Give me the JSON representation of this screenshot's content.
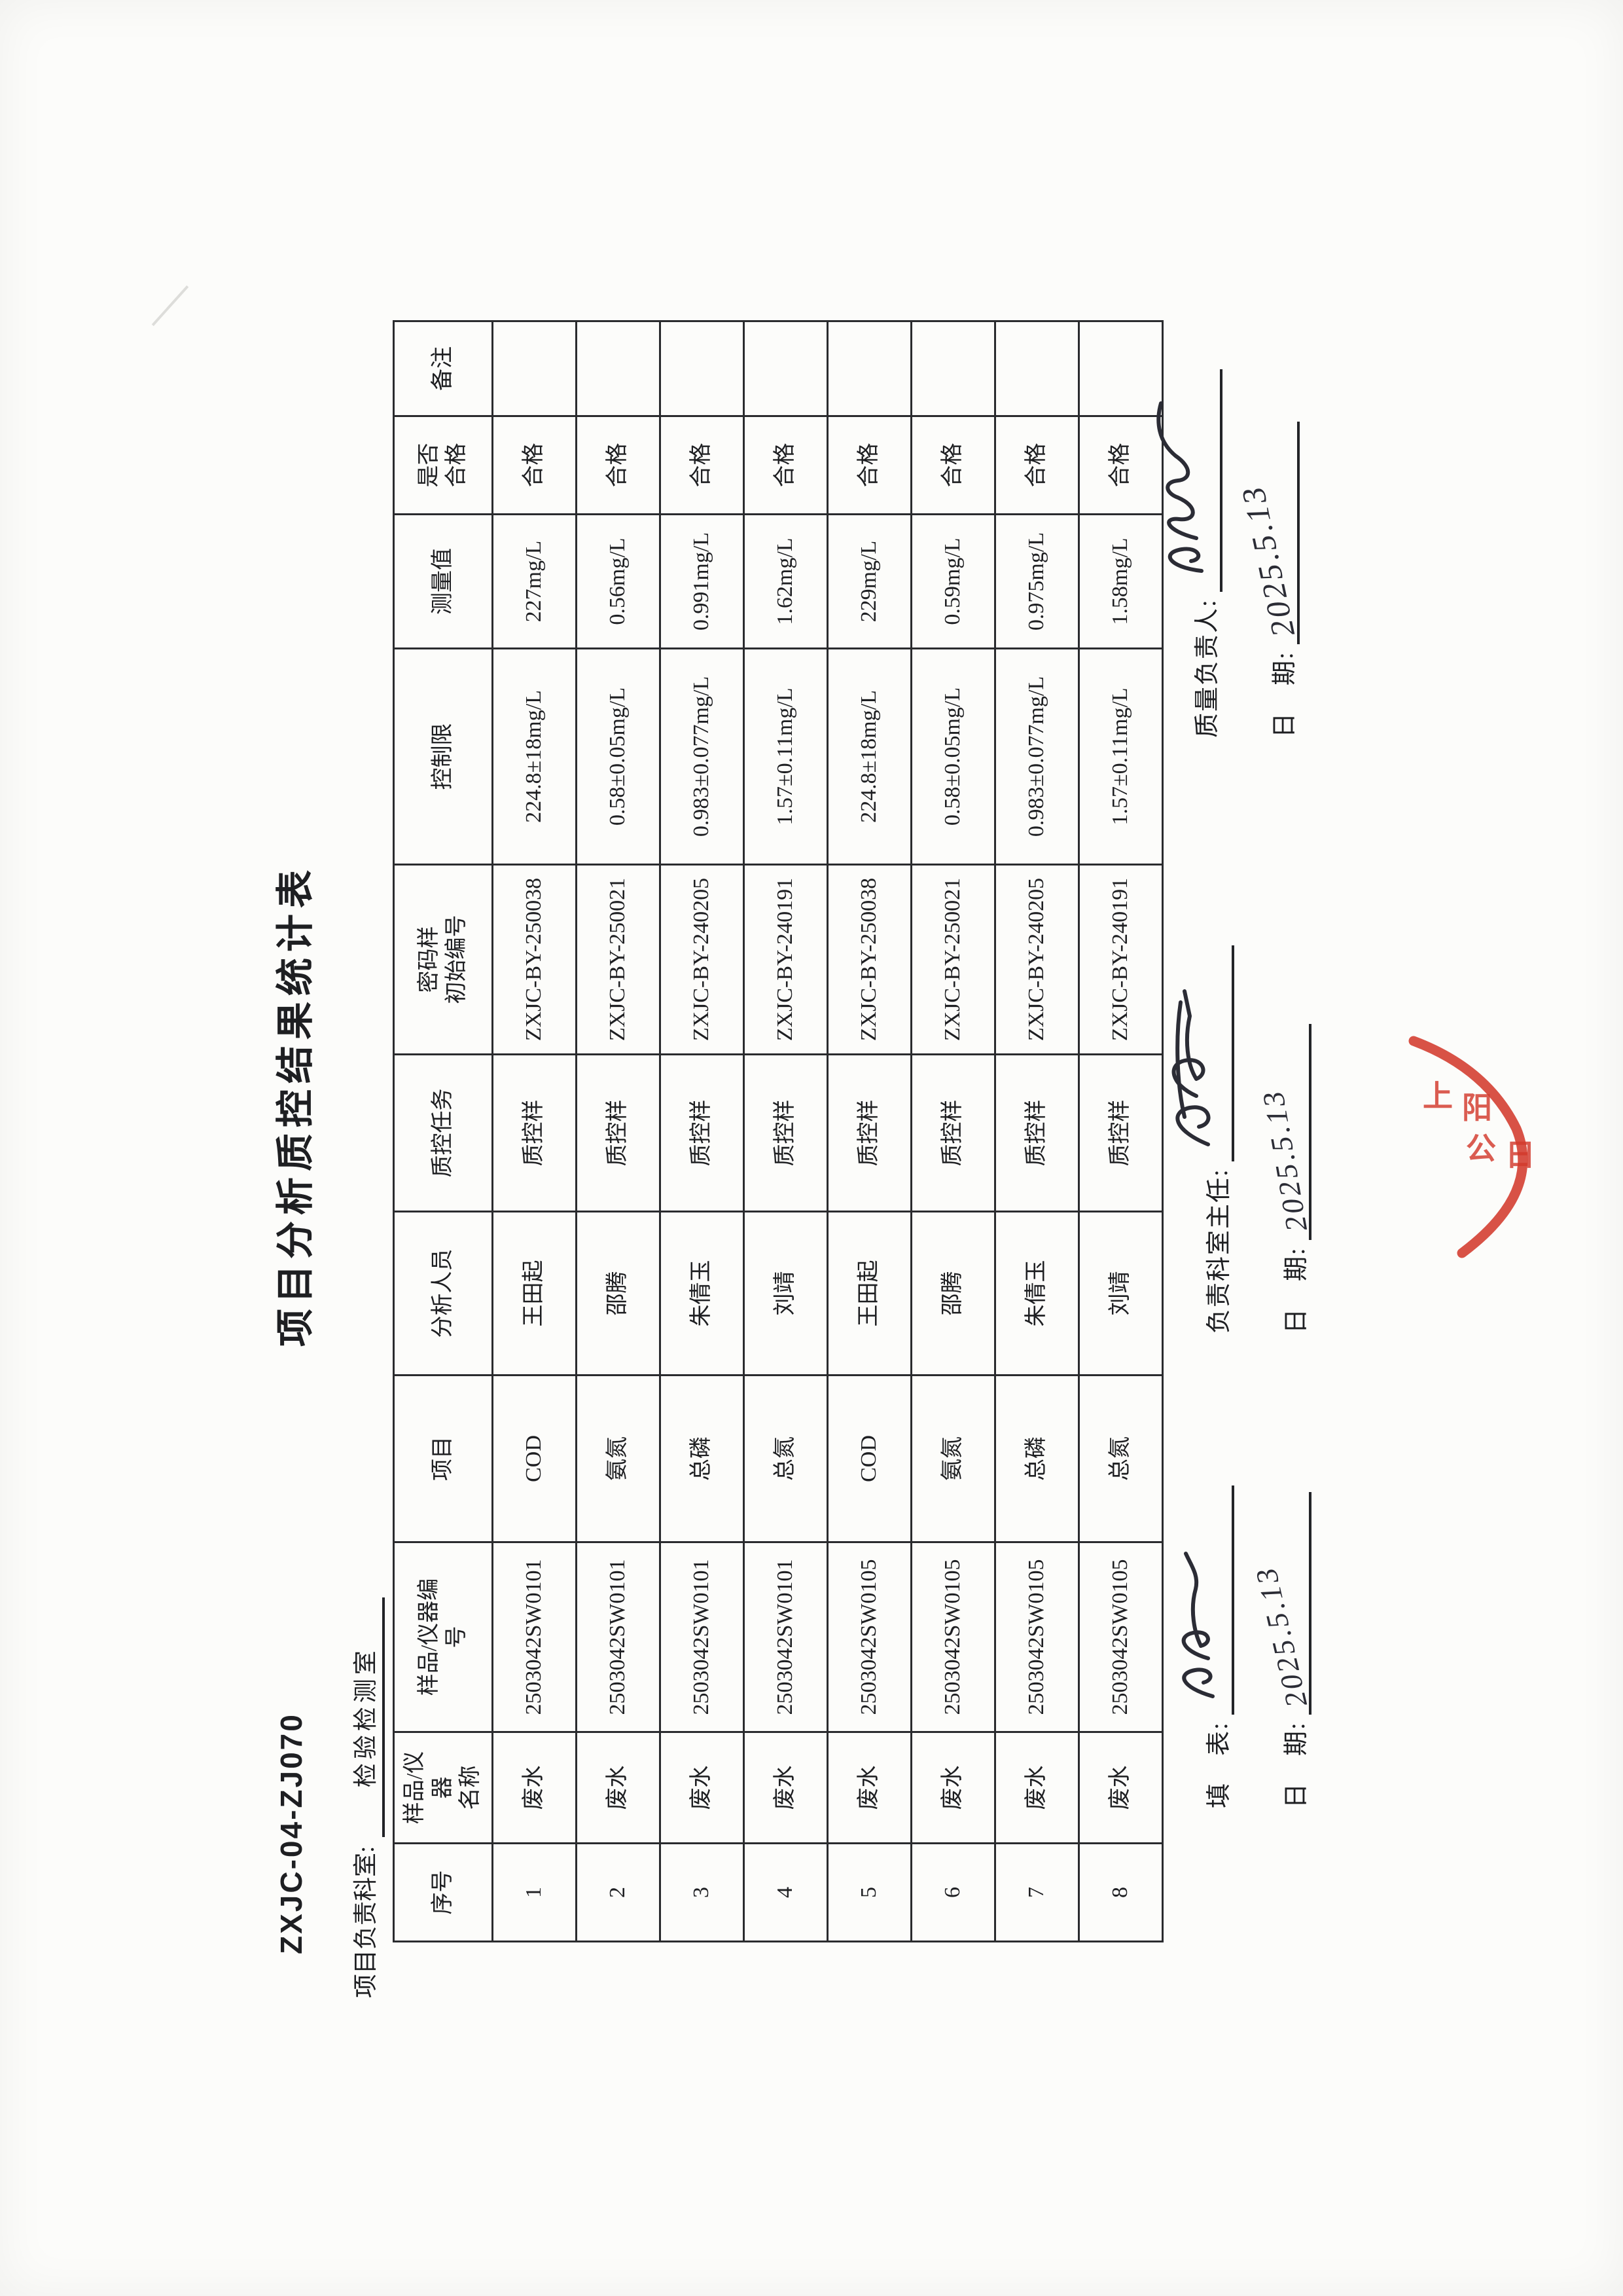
{
  "doc": {
    "form_code": "ZXJC-04-ZJ070",
    "title": "项目分析质控结果统计表",
    "dept_label": "项目负责科室:",
    "dept_value": "检验检测室"
  },
  "table": {
    "headers": [
      "序号",
      "样品/仪\n器\n名称",
      "样品/仪器编\n号",
      "项目",
      "分析人员",
      "质控任务",
      "密码样\n初始编号",
      "控制限",
      "测量值",
      "是否\n合格",
      "备注"
    ],
    "rows": [
      [
        "1",
        "废水",
        "2503042SW0101",
        "COD",
        "王田起",
        "质控样",
        "ZXJC-BY-250038",
        "224.8±18mg/L",
        "227mg/L",
        "合格",
        ""
      ],
      [
        "2",
        "废水",
        "2503042SW0101",
        "氨氮",
        "邵腾",
        "质控样",
        "ZXJC-BY-250021",
        "0.58±0.05mg/L",
        "0.56mg/L",
        "合格",
        ""
      ],
      [
        "3",
        "废水",
        "2503042SW0101",
        "总磷",
        "朱倩玉",
        "质控样",
        "ZXJC-BY-240205",
        "0.983±0.077mg/L",
        "0.991mg/L",
        "合格",
        ""
      ],
      [
        "4",
        "废水",
        "2503042SW0101",
        "总氮",
        "刘靖",
        "质控样",
        "ZXJC-BY-240191",
        "1.57±0.11mg/L",
        "1.62mg/L",
        "合格",
        ""
      ],
      [
        "5",
        "废水",
        "2503042SW0105",
        "COD",
        "王田起",
        "质控样",
        "ZXJC-BY-250038",
        "224.8±18mg/L",
        "229mg/L",
        "合格",
        ""
      ],
      [
        "6",
        "废水",
        "2503042SW0105",
        "氨氮",
        "邵腾",
        "质控样",
        "ZXJC-BY-250021",
        "0.58±0.05mg/L",
        "0.59mg/L",
        "合格",
        ""
      ],
      [
        "7",
        "废水",
        "2503042SW0105",
        "总磷",
        "朱倩玉",
        "质控样",
        "ZXJC-BY-240205",
        "0.983±0.077mg/L",
        "0.975mg/L",
        "合格",
        ""
      ],
      [
        "8",
        "废水",
        "2503042SW0105",
        "总氮",
        "刘靖",
        "质控样",
        "ZXJC-BY-240191",
        "1.57±0.11mg/L",
        "1.58mg/L",
        "合格",
        ""
      ]
    ]
  },
  "signatures": {
    "filler": {
      "label": "填　表:",
      "date_label": "日　期:",
      "date_value": "2025.5.13"
    },
    "dept_head": {
      "label": "负责科室主任:",
      "date_label": "日　期:",
      "date_value": "2025.5.13"
    },
    "quality": {
      "label": "质量负责人:",
      "date_label": "日　期:",
      "date_value": "2025.5.13"
    }
  },
  "stamp": {
    "chars": [
      "上",
      "阳",
      "公",
      "日"
    ],
    "color": "#d33a2c"
  }
}
